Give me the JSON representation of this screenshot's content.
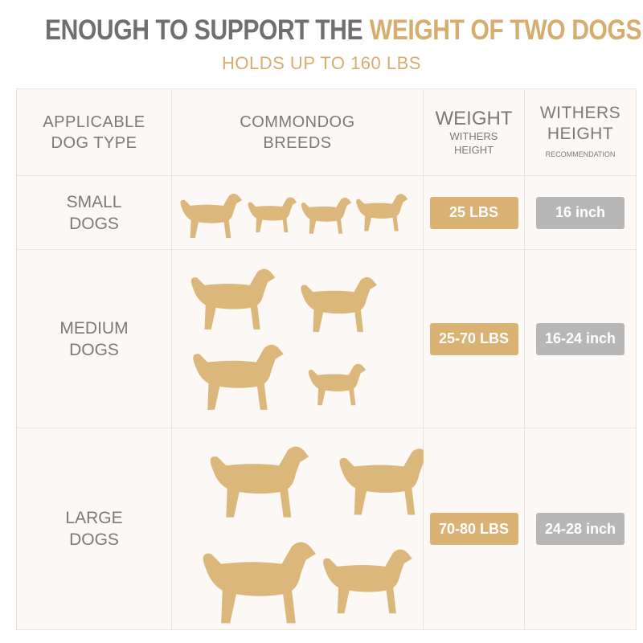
{
  "header": {
    "title": {
      "part1": "ENOUGH TO SUPPORT THE",
      "part2": "WEIGHT OF TWO DOGS"
    },
    "subtitle": "HOLDS UP TO 160 LBS"
  },
  "table": {
    "columns": [
      {
        "label": "APPLICABLE DOG TYPE"
      },
      {
        "label": "COMMONDOG BREEDS"
      },
      {
        "label": "WEIGHT",
        "sublabel": "WITHERS HEIGHT"
      },
      {
        "label": "WITHERS HEIGHT",
        "sublabel": "RECOMMENDATION"
      }
    ],
    "rows": [
      {
        "type": "SMALL DOGS",
        "weight": "25 LBS",
        "height": "16 inch"
      },
      {
        "type": "MEDIUM DOGS",
        "weight": "25-70 LBS",
        "height": "16-24 inch"
      },
      {
        "type": "LARGE DOGS",
        "weight": "70-80 LBS",
        "height": "24-28 inch"
      }
    ]
  }
}
